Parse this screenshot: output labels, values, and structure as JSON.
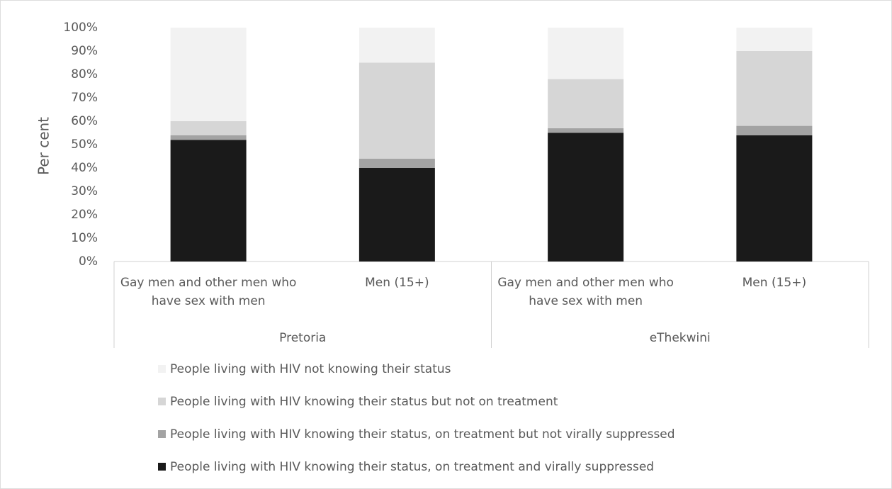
{
  "chart_data": {
    "type": "stacked_bar",
    "ylabel": "Per cent",
    "groups": [
      {
        "name": "Pretoria",
        "categories": [
          "Gay men and other men who have sex with men",
          "Men (15+)"
        ]
      },
      {
        "name": "eThekwini",
        "categories": [
          "Gay men and other men who have sex with men",
          "Men (15+)"
        ]
      }
    ],
    "series": [
      {
        "name": "People living with HIV knowing their status, on treatment and virally suppressed",
        "color": "#1a1a1a",
        "values": [
          52,
          40,
          55,
          54
        ]
      },
      {
        "name": "People living with HIV knowing their status, on treatment but not virally suppressed",
        "color": "#a3a3a3",
        "values": [
          2,
          4,
          2,
          4
        ]
      },
      {
        "name": "People living with HIV knowing their status but not on treatment",
        "color": "#d6d6d6",
        "values": [
          6,
          41,
          21,
          32
        ]
      },
      {
        "name": "People living with HIV not knowing their status",
        "color": "#f2f2f2",
        "values": [
          40,
          15,
          22,
          10
        ]
      }
    ],
    "ylim": [
      0,
      100
    ],
    "yticks": [
      {
        "value": 0,
        "label": "0%"
      },
      {
        "value": 10,
        "label": "10%"
      },
      {
        "value": 20,
        "label": "20%"
      },
      {
        "value": 30,
        "label": "30%"
      },
      {
        "value": 40,
        "label": "40%"
      },
      {
        "value": 50,
        "label": "50%"
      },
      {
        "value": 60,
        "label": "60%"
      },
      {
        "value": 70,
        "label": "70%"
      },
      {
        "value": 80,
        "label": "80%"
      },
      {
        "value": 90,
        "label": "90%"
      },
      {
        "value": 100,
        "label": "100%"
      }
    ],
    "legend": "bottom"
  }
}
